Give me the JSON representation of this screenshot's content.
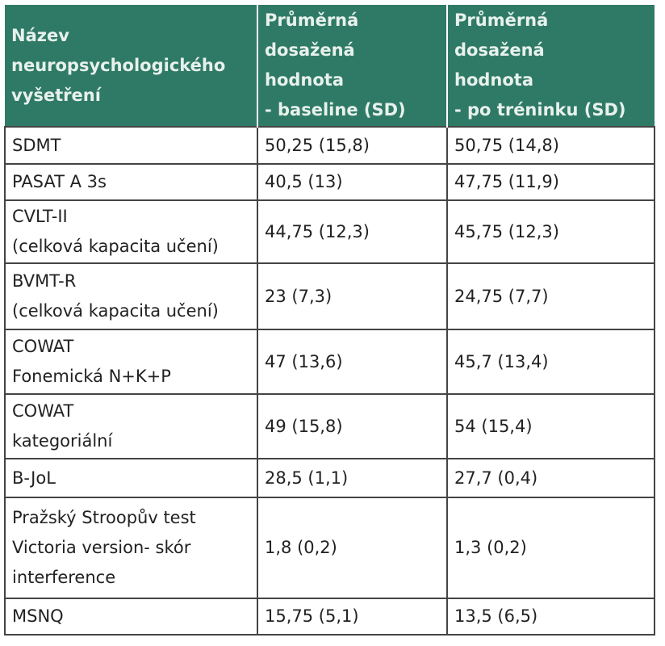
{
  "table": {
    "header": [
      "Název\nneuropsychologického\nvyšetření",
      "Průměrná\ndosažená\nhodnota\n- baseline (SD)",
      "Průměrná\ndosažená\nhodnota\n- po tréninku (SD)"
    ],
    "rows": [
      [
        " SDMT",
        "50,25 (15,8)",
        "50,75 (14,8)"
      ],
      [
        "PASAT A 3s",
        "40,5 (13)",
        "47,75 (11,9)"
      ],
      [
        "CVLT-II\n(celková kapacita učení)",
        "44,75 (12,3)",
        "45,75 (12,3)"
      ],
      [
        "BVMT-R\n(celková kapacita učení)",
        "23 (7,3)",
        "24,75 (7,7)"
      ],
      [
        "COWAT\nFonemická N+K+P",
        "47 (13,6)",
        "45,7 (13,4)"
      ],
      [
        "COWAT\nkategoriální",
        "49 (15,8)",
        "54 (15,4)"
      ],
      [
        "B-JoL",
        "28,5 (1,1)",
        "27,7 (0,4)"
      ],
      [
        "Pražský Stroopův test\nVictoria version- skór\ninterference",
        "1,8 (0,2)",
        "1,3 (0,2)"
      ],
      [
        "MSNQ",
        "15,75 (5,1)",
        "13,5 (6,5)"
      ]
    ]
  }
}
